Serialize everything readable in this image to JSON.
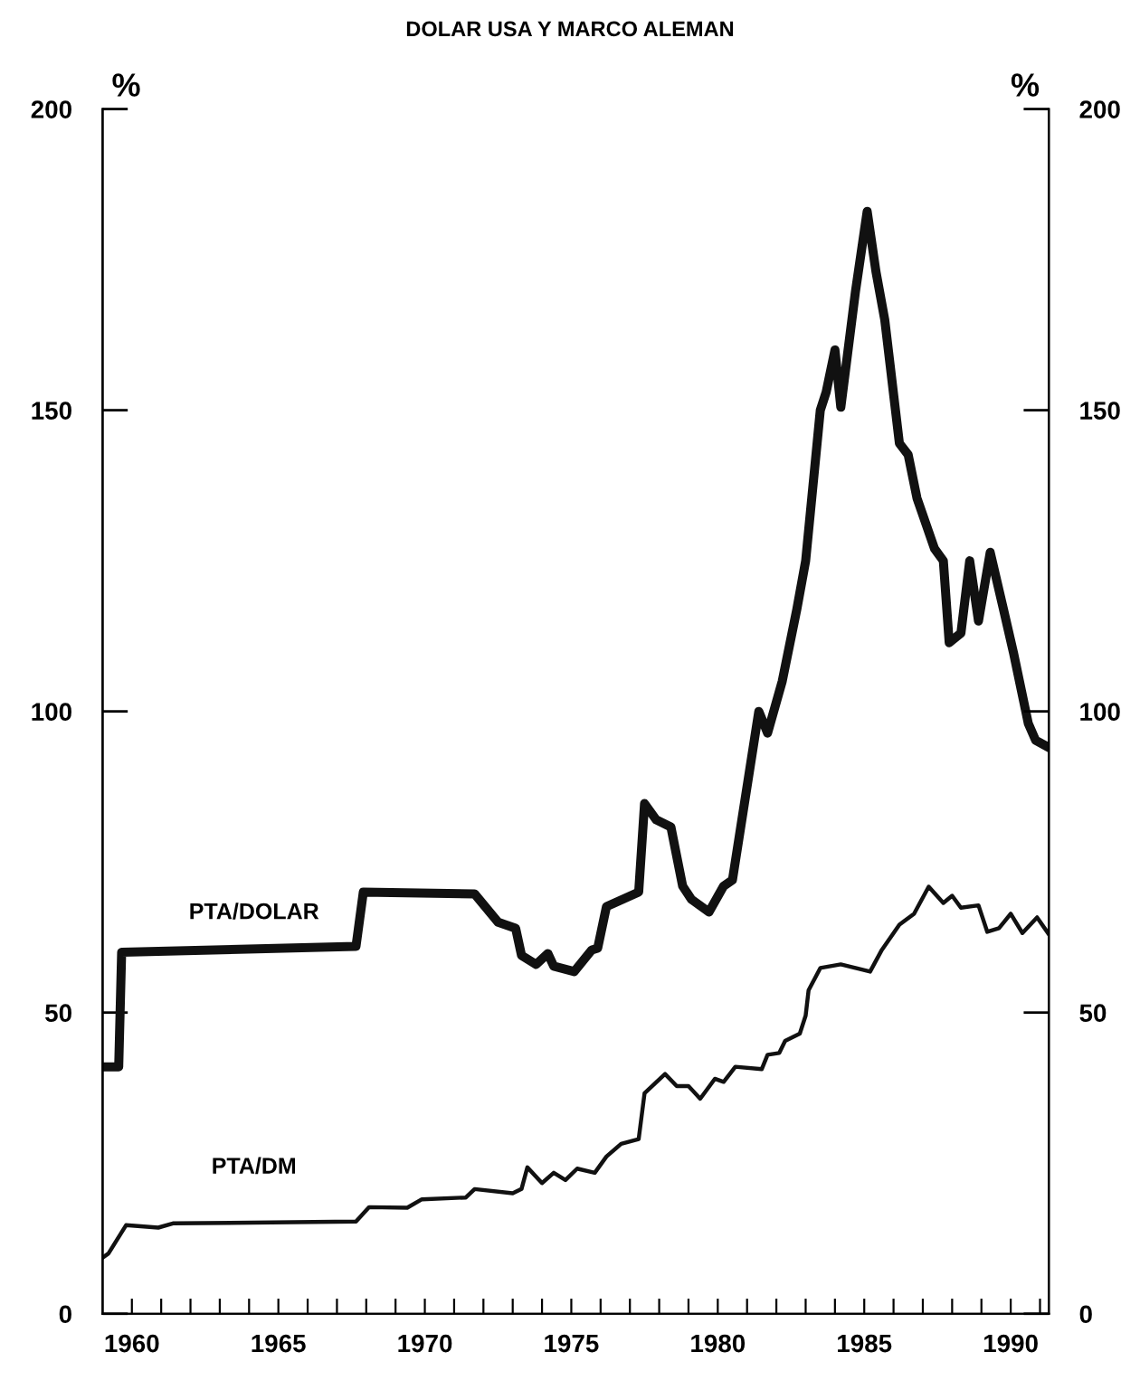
{
  "chart_data": {
    "type": "line",
    "title": "DOLAR USA Y MARCO ALEMAN",
    "ylabel": "%",
    "y2label": "%",
    "xlim": [
      1959,
      1991.3
    ],
    "ylim": [
      0,
      200
    ],
    "yticks": [
      0,
      50,
      100,
      150,
      200
    ],
    "y2lim": [
      0,
      200
    ],
    "y2ticks": [
      0,
      50,
      100,
      150,
      200
    ],
    "xticks": [
      {
        "value": 1960,
        "label": "1960"
      },
      {
        "value": 1961,
        "label": null
      },
      {
        "value": 1962,
        "label": null
      },
      {
        "value": 1963,
        "label": null
      },
      {
        "value": 1964,
        "label": null
      },
      {
        "value": 1965,
        "label": "1965"
      },
      {
        "value": 1966,
        "label": null
      },
      {
        "value": 1967,
        "label": null
      },
      {
        "value": 1968,
        "label": null
      },
      {
        "value": 1969,
        "label": null
      },
      {
        "value": 1970,
        "label": "1970"
      },
      {
        "value": 1971,
        "label": null
      },
      {
        "value": 1972,
        "label": null
      },
      {
        "value": 1973,
        "label": null
      },
      {
        "value": 1974,
        "label": null
      },
      {
        "value": 1975,
        "label": "1975"
      },
      {
        "value": 1976,
        "label": null
      },
      {
        "value": 1977,
        "label": null
      },
      {
        "value": 1978,
        "label": null
      },
      {
        "value": 1979,
        "label": null
      },
      {
        "value": 1980,
        "label": "1980"
      },
      {
        "value": 1981,
        "label": null
      },
      {
        "value": 1982,
        "label": null
      },
      {
        "value": 1983,
        "label": null
      },
      {
        "value": 1984,
        "label": null
      },
      {
        "value": 1985,
        "label": "1985"
      },
      {
        "value": 1986,
        "label": null
      },
      {
        "value": 1987,
        "label": null
      },
      {
        "value": 1988,
        "label": null
      },
      {
        "value": 1989,
        "label": null
      },
      {
        "value": 1990,
        "label": "1990"
      },
      {
        "value": 1991,
        "label": null
      }
    ],
    "grid": false,
    "legend": false,
    "marker": "none",
    "line_style": "solid",
    "series": [
      {
        "name": "PTA/DOLAR",
        "color": "#111111",
        "x": [
          1959,
          1959.55,
          1959.65,
          1967.65,
          1967.9,
          1971.7,
          1972.5,
          1973.1,
          1973.3,
          1973.8,
          1974.2,
          1974.4,
          1975.1,
          1975.7,
          1975.9,
          1976.2,
          1977.3,
          1977.5,
          1977.9,
          1978.4,
          1978.8,
          1979.1,
          1979.7,
          1980.2,
          1980.5,
          1981.4,
          1981.7,
          1982.2,
          1982.7,
          1983.0,
          1983.5,
          1983.7,
          1984.0,
          1984.2,
          1984.7,
          1985.1,
          1985.4,
          1985.7,
          1986.2,
          1986.5,
          1986.8,
          1987.4,
          1987.7,
          1987.9,
          1988.3,
          1988.6,
          1988.9,
          1989.3,
          1989.75,
          1990.1,
          1990.6,
          1990.85,
          1991.3
        ],
        "values": [
          41,
          41,
          60,
          61,
          70,
          69.7,
          65,
          64,
          59.5,
          58,
          59.8,
          57.7,
          56.8,
          60.4,
          60.7,
          67.6,
          70,
          84.7,
          82,
          80.8,
          71,
          68.8,
          66.7,
          71,
          72,
          100,
          96.4,
          105,
          117,
          125,
          150,
          153,
          160,
          150.5,
          169.7,
          183,
          173,
          165,
          144.5,
          142.6,
          135.4,
          127,
          125,
          111.4,
          113,
          125,
          115,
          126.4,
          117,
          109.6,
          98,
          95.2,
          94
        ]
      },
      {
        "name": "PTA/DM",
        "color": "#111111",
        "x": [
          1959,
          1959.2,
          1959.8,
          1960.9,
          1961.4,
          1967.65,
          1968.1,
          1969.4,
          1969.9,
          1971.4,
          1971.7,
          1973.0,
          1973.3,
          1973.5,
          1974.0,
          1974.4,
          1974.8,
          1975.2,
          1975.8,
          1976.2,
          1976.7,
          1977.3,
          1977.5,
          1978.2,
          1978.6,
          1979.0,
          1979.4,
          1979.9,
          1980.2,
          1980.6,
          1981.5,
          1981.7,
          1982.1,
          1982.3,
          1982.8,
          1983.0,
          1983.1,
          1983.5,
          1984.2,
          1985.2,
          1985.6,
          1986.2,
          1986.7,
          1987.2,
          1987.7,
          1988.0,
          1988.3,
          1988.9,
          1989.2,
          1989.6,
          1990.0,
          1990.4,
          1990.9,
          1991.3
        ],
        "values": [
          9.3,
          10,
          14.7,
          14.3,
          15,
          15.3,
          17.7,
          17.6,
          19,
          19.3,
          20.7,
          20,
          20.7,
          24.3,
          21.7,
          23.4,
          22.2,
          24.1,
          23.4,
          26.1,
          28.2,
          29,
          36.6,
          39.8,
          37.8,
          37.8,
          35.7,
          39,
          38.5,
          41,
          40.6,
          43,
          43.3,
          45.3,
          46.5,
          49.5,
          53.7,
          57.4,
          58,
          56.8,
          60.4,
          64.6,
          66.4,
          70.9,
          68.2,
          69.4,
          67.4,
          67.8,
          63.4,
          64,
          66.4,
          63.2,
          65.8,
          63
        ]
      }
    ]
  }
}
